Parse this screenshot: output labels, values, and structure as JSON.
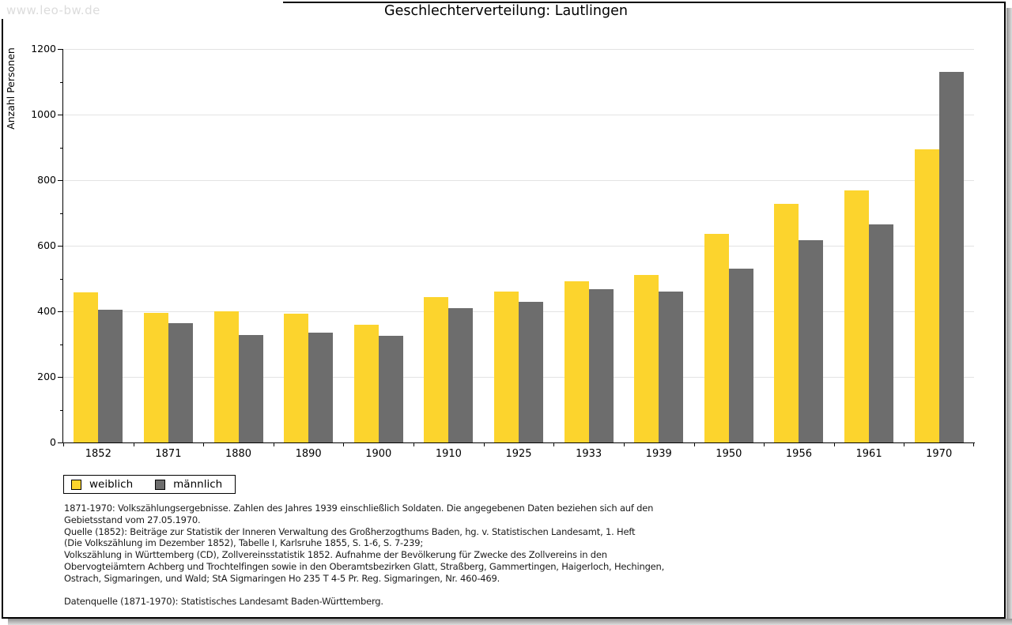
{
  "watermark": {
    "text": "www.leo-bw.de"
  },
  "chart_data": {
    "type": "bar",
    "title": "Geschlechterverteilung: Lautlingen",
    "ylabel": "Anzahl Personen",
    "xlabel": "",
    "ylim": [
      0,
      1200
    ],
    "ytick_major_step": 200,
    "ytick_minor_step": 100,
    "grid": true,
    "legend_position": "bottom-left",
    "categories": [
      "1852",
      "1871",
      "1880",
      "1890",
      "1900",
      "1910",
      "1925",
      "1933",
      "1939",
      "1950",
      "1956",
      "1961",
      "1970"
    ],
    "series": [
      {
        "name": "weiblich",
        "color": "#FCD42D",
        "values": [
          458,
          394,
          400,
          393,
          358,
          444,
          460,
          491,
          511,
          637,
          727,
          769,
          895
        ]
      },
      {
        "name": "männlich",
        "color": "#6D6D6D",
        "values": [
          406,
          364,
          328,
          336,
          326,
          409,
          430,
          468,
          460,
          531,
          618,
          665,
          1130
        ]
      }
    ],
    "colors": {
      "grid": "#e3e3e3",
      "axis": "#000000"
    }
  },
  "footnotes": {
    "lines": [
      "1871-1970: Volkszählungsergebnisse. Zahlen des Jahres 1939 einschließlich Soldaten. Die angegebenen Daten beziehen sich auf den",
      "Gebietsstand vom 27.05.1970.",
      "Quelle (1852): Beiträge zur Statistik der Inneren Verwaltung des Großherzogthums Baden, hg. v. Statistischen Landesamt, 1. Heft",
      "(Die Volkszählung im Dezember 1852), Tabelle I, Karlsruhe 1855, S. 1-6, S. 7-239;",
      "Volkszählung in Württemberg (CD), Zollvereinsstatistik 1852. Aufnahme der Bevölkerung für Zwecke des Zollvereins in den",
      "Obervogteiämtern Achberg und Trochtelfingen sowie in den Oberamtsbezirken Glatt, Straßberg, Gammertingen, Haigerloch, Hechingen,",
      "Ostrach, Sigmaringen, und Wald; StA Sigmaringen Ho 235 T 4-5 Pr. Reg. Sigmaringen, Nr. 460-469.",
      "",
      "Datenquelle (1871-1970): Statistisches Landesamt Baden-Württemberg."
    ]
  }
}
